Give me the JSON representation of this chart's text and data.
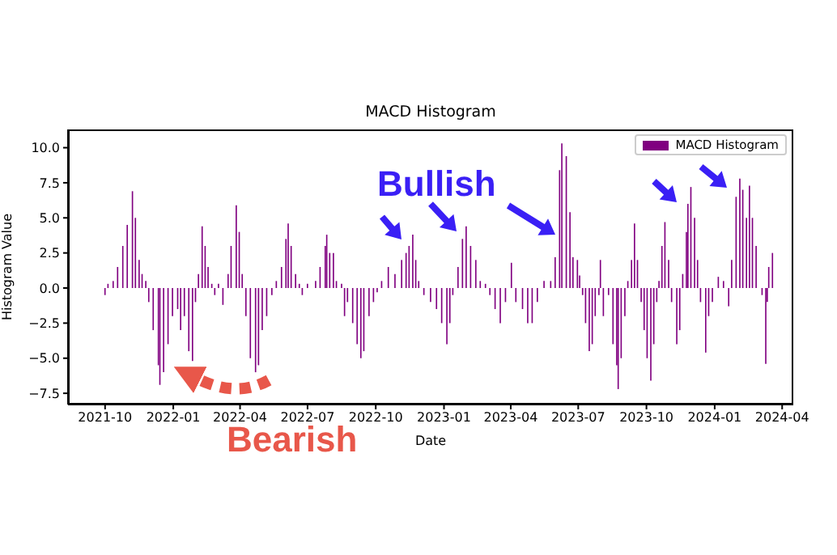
{
  "chart_data": {
    "type": "bar",
    "title": "MACD Histogram",
    "xlabel": "Date",
    "ylabel": "Histogram Value",
    "annotations": [
      "Bullish",
      "Bearish"
    ],
    "x": [
      "2021-10-01",
      "2021-10-05",
      "2021-10-12",
      "2021-10-18",
      "2021-10-25",
      "2021-10-31",
      "2021-11-07",
      "2021-11-11",
      "2021-11-16",
      "2021-11-20",
      "2021-11-25",
      "2021-11-29",
      "2021-12-05",
      "2021-12-12",
      "2021-12-14",
      "2021-12-19",
      "2021-12-25",
      "2021-12-31",
      "2022-01-07",
      "2022-01-11",
      "2022-01-16",
      "2022-01-22",
      "2022-01-27",
      "2022-01-31",
      "2022-02-04",
      "2022-02-09",
      "2022-02-13",
      "2022-02-17",
      "2022-02-22",
      "2022-02-26",
      "2022-03-03",
      "2022-03-09",
      "2022-03-16",
      "2022-03-20",
      "2022-03-27",
      "2022-03-31",
      "2022-04-04",
      "2022-04-09",
      "2022-04-15",
      "2022-04-22",
      "2022-04-26",
      "2022-05-01",
      "2022-05-07",
      "2022-05-14",
      "2022-05-20",
      "2022-05-27",
      "2022-06-02",
      "2022-06-05",
      "2022-06-09",
      "2022-06-15",
      "2022-06-20",
      "2022-06-24",
      "2022-07-01",
      "2022-07-12",
      "2022-07-18",
      "2022-07-25",
      "2022-07-27",
      "2022-07-31",
      "2022-08-05",
      "2022-08-09",
      "2022-08-16",
      "2022-08-20",
      "2022-08-24",
      "2022-08-31",
      "2022-09-06",
      "2022-09-11",
      "2022-09-15",
      "2022-09-22",
      "2022-09-28",
      "2022-10-03",
      "2022-10-09",
      "2022-10-18",
      "2022-10-27",
      "2022-11-05",
      "2022-11-11",
      "2022-11-15",
      "2022-11-20",
      "2022-11-24",
      "2022-11-28",
      "2022-12-05",
      "2022-12-14",
      "2022-12-22",
      "2022-12-29",
      "2023-01-05",
      "2023-01-09",
      "2023-01-13",
      "2023-01-20",
      "2023-01-26",
      "2023-01-31",
      "2023-02-06",
      "2023-02-13",
      "2023-02-19",
      "2023-02-26",
      "2023-03-04",
      "2023-03-11",
      "2023-03-18",
      "2023-03-25",
      "2023-04-02",
      "2023-04-08",
      "2023-04-17",
      "2023-04-24",
      "2023-04-30",
      "2023-05-07",
      "2023-05-16",
      "2023-05-25",
      "2023-05-31",
      "2023-06-06",
      "2023-06-09",
      "2023-06-15",
      "2023-06-20",
      "2023-06-24",
      "2023-06-30",
      "2023-07-03",
      "2023-07-07",
      "2023-07-11",
      "2023-07-16",
      "2023-07-20",
      "2023-07-24",
      "2023-07-29",
      "2023-07-31",
      "2023-08-04",
      "2023-08-11",
      "2023-08-17",
      "2023-08-22",
      "2023-08-24",
      "2023-08-28",
      "2023-09-02",
      "2023-09-06",
      "2023-09-11",
      "2023-09-15",
      "2023-09-19",
      "2023-09-24",
      "2023-09-28",
      "2023-10-02",
      "2023-10-07",
      "2023-10-11",
      "2023-10-15",
      "2023-10-18",
      "2023-10-22",
      "2023-10-26",
      "2023-10-31",
      "2023-11-04",
      "2023-11-11",
      "2023-11-15",
      "2023-11-19",
      "2023-11-24",
      "2023-11-26",
      "2023-11-30",
      "2023-12-05",
      "2023-12-09",
      "2023-12-13",
      "2023-12-20",
      "2023-12-24",
      "2023-12-29",
      "2024-01-06",
      "2024-01-13",
      "2024-01-20",
      "2024-01-24",
      "2024-01-30",
      "2024-02-04",
      "2024-02-08",
      "2024-02-13",
      "2024-02-17",
      "2024-02-21",
      "2024-02-26",
      "2024-03-05",
      "2024-03-10",
      "2024-03-12",
      "2024-03-14",
      "2024-03-19"
    ],
    "series": [
      {
        "name": "MACD Histogram",
        "color": "#800080",
        "values": [
          -0.5,
          0.3,
          0.5,
          1.5,
          3,
          4.5,
          6.9,
          5,
          2,
          1,
          0.5,
          -1,
          -3,
          -5.5,
          -6.9,
          -6,
          -4,
          -2,
          -1.5,
          -3,
          -2,
          -4.5,
          -5.2,
          -1,
          1,
          4.4,
          3,
          1.5,
          0.3,
          -0.5,
          0.3,
          -1.2,
          1,
          3,
          5.9,
          4,
          1,
          -2,
          -5,
          -6,
          -5.5,
          -3,
          -2,
          -0.5,
          0.5,
          1.5,
          3.5,
          4.6,
          3,
          1,
          0.3,
          -0.5,
          0.3,
          0.5,
          1.5,
          3,
          3.8,
          2.5,
          2.5,
          0.5,
          0.3,
          -2,
          -1,
          -2.5,
          -4,
          -5,
          -4.5,
          -2,
          -1,
          -0.3,
          0.5,
          1.5,
          1,
          2,
          2.5,
          3,
          3.8,
          2,
          0.5,
          -0.5,
          -1,
          -1.5,
          -2.5,
          -4,
          -2.5,
          -0.5,
          1.5,
          3.5,
          4.4,
          3,
          2,
          0.5,
          0.3,
          -0.5,
          -1.5,
          -2.5,
          -1,
          1.8,
          -1,
          -1.5,
          -2.5,
          -2.5,
          -1,
          0.5,
          0.5,
          2.2,
          8.4,
          10.3,
          9.4,
          5.4,
          2.2,
          2,
          0.9,
          -0.5,
          -2.5,
          -4.5,
          -4,
          -2,
          -0.5,
          2,
          -2,
          -0.5,
          -4,
          -5.5,
          -7.2,
          -5,
          -2,
          0.5,
          2,
          4.6,
          2,
          -1,
          -3,
          -5,
          -6.6,
          -4,
          -1,
          0.5,
          3,
          4.7,
          2,
          -1,
          -4,
          -3,
          1,
          4,
          6,
          7.2,
          5,
          2,
          -1,
          -4.6,
          -2,
          -1,
          0.8,
          0.5,
          -1.3,
          2,
          6.5,
          7.8,
          7,
          5,
          7.3,
          5,
          3,
          -0.5,
          -5.4,
          -1,
          1.5,
          2.5
        ]
      }
    ],
    "xlim": [
      "2021-08-12",
      "2024-04-16"
    ],
    "xticks": [
      "2021-10",
      "2022-01",
      "2022-04",
      "2022-07",
      "2022-10",
      "2023-01",
      "2023-04",
      "2023-07",
      "2023-10",
      "2024-01",
      "2024-04"
    ],
    "ylim": [
      -8.3,
      11.3
    ],
    "yticks": [
      {
        "value": -7.5,
        "label": "−7.5"
      },
      {
        "value": -5,
        "label": "−5.0"
      },
      {
        "value": -2.5,
        "label": "−2.5"
      },
      {
        "value": 0,
        "label": "0.0"
      },
      {
        "value": 2.5,
        "label": "2.5"
      },
      {
        "value": 5,
        "label": "5.0"
      },
      {
        "value": 7.5,
        "label": "7.5"
      },
      {
        "value": 10,
        "label": "10.0"
      }
    ],
    "legend": "top right"
  }
}
